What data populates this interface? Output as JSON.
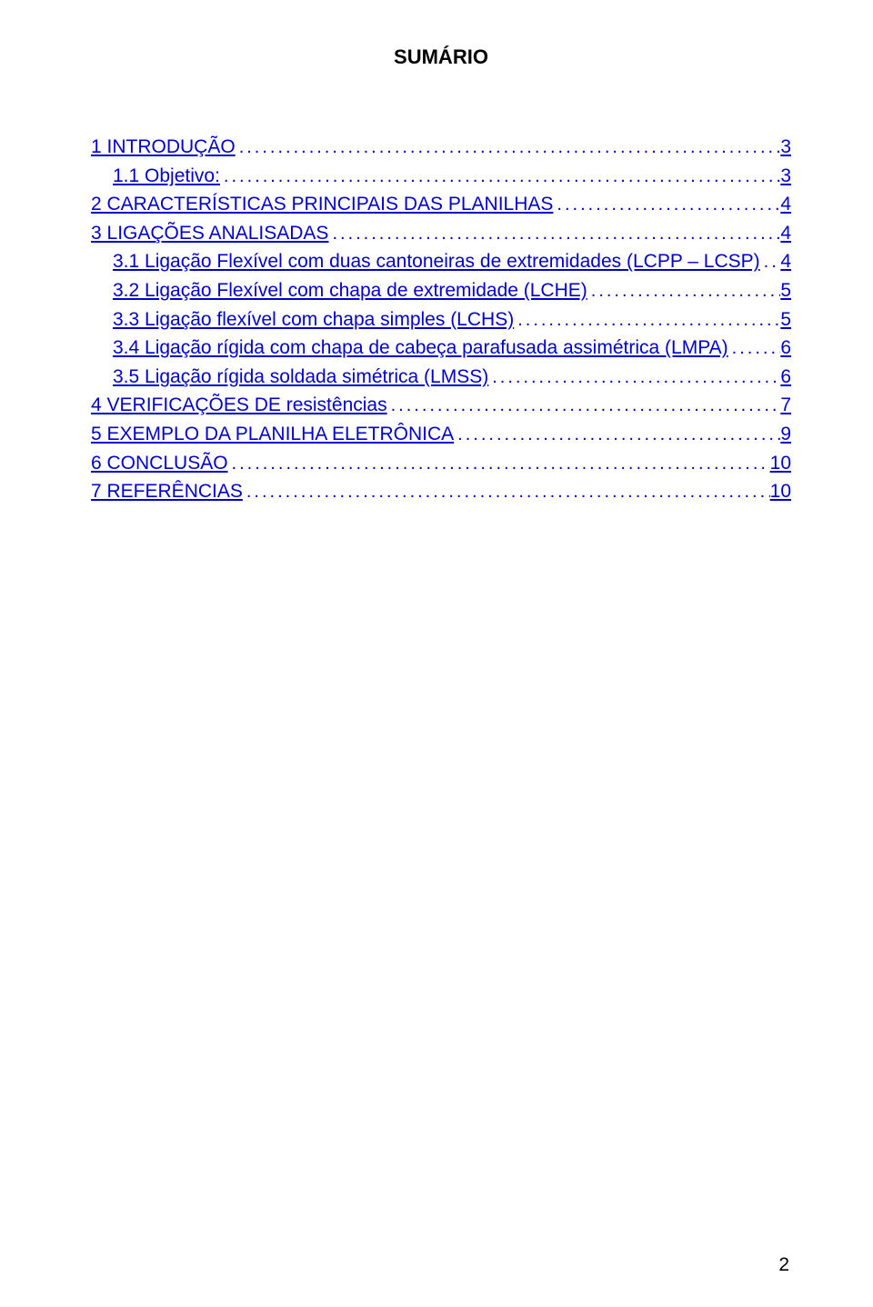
{
  "title": "SUMÁRIO",
  "link_color": "#0000cc",
  "text_color": "#000000",
  "background_color": "#ffffff",
  "font_family": "Arial",
  "title_fontsize": 22,
  "toc_fontsize": 21,
  "toc": [
    {
      "label": "1 INTRODUÇÃO",
      "page": "3",
      "indent": 0
    },
    {
      "label": "1.1 Objetivo:",
      "page": "3",
      "indent": 1
    },
    {
      "label": "2 CARACTERÍSTICAS PRINCIPAIS DAS PLANILHAS",
      "page": "4",
      "indent": 0
    },
    {
      "label": "3 LIGAÇÕES ANALISADAS",
      "page": "4",
      "indent": 0
    },
    {
      "label": "3.1 Ligação Flexível com duas cantoneiras de extremidades (LCPP – LCSP)",
      "page": "4",
      "indent": 1
    },
    {
      "label": "3.2 Ligação Flexível com chapa de extremidade (LCHE)",
      "page": "5",
      "indent": 1
    },
    {
      "label": "3.3 Ligação flexível com chapa simples (LCHS)",
      "page": "5",
      "indent": 1
    },
    {
      "label": "3.4 Ligação rígida com chapa de cabeça parafusada assimétrica (LMPA)",
      "page": "6",
      "indent": 1
    },
    {
      "label": "3.5 Ligação rígida soldada simétrica (LMSS)",
      "page": "6",
      "indent": 1
    },
    {
      "label": "4 VERIFICAÇÕES DE resistências",
      "page": "7",
      "indent": 0
    },
    {
      "label": "5 EXEMPLO DA PLANILHA ELETRÔNICA",
      "page": "9",
      "indent": 0
    },
    {
      "label": "6 CONCLUSÃO",
      "page": "10",
      "indent": 0
    },
    {
      "label": "7 REFERÊNCIAS",
      "page": "10",
      "indent": 0
    }
  ],
  "page_number": "2"
}
